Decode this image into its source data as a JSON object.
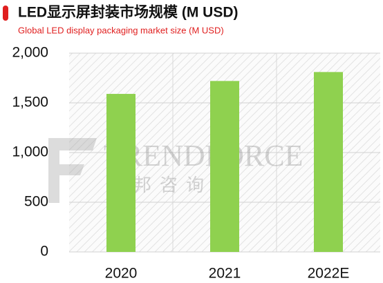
{
  "chart_data": {
    "type": "bar",
    "title": "LED显示屏封装市场规模 (M USD)",
    "subtitle": "Global LED display packaging market size (M USD)",
    "categories": [
      "2020",
      "2021",
      "2022E"
    ],
    "values": [
      1590,
      1720,
      1810
    ],
    "color": "#8fd14f",
    "ylim": [
      0,
      2000
    ],
    "yticks": [
      0,
      500,
      {
        "value": 1000,
        "label": "1,000"
      },
      {
        "value": 1500,
        "label": "1,500"
      },
      {
        "value": 2000,
        "label": "2,000"
      }
    ],
    "grid": true,
    "watermark": {
      "brand": "TRENDFORCE",
      "subtitle": "集邦咨询"
    }
  }
}
